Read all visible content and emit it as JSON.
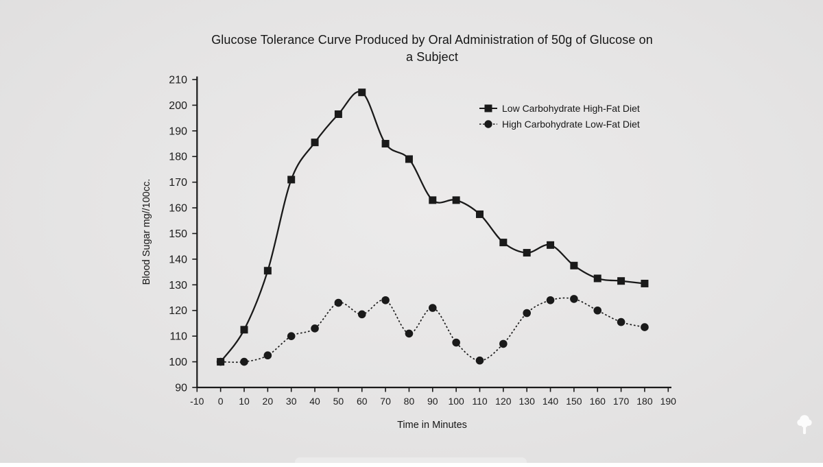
{
  "colors": {
    "background": "#e5e4e4",
    "line": "#1a1a1a",
    "text": "#1c1c1c",
    "watermark": "#ffffff"
  },
  "watermark_icon": "tree-logo",
  "chart_data": {
    "type": "line",
    "title": "Glucose Tolerance Curve Produced by Oral Administration of 50g of Glucose on a Subject",
    "title_lines": [
      "Glucose Tolerance Curve Produced by Oral Administration of 50g of Glucose on",
      "a Subject"
    ],
    "xlabel": "Time in Minutes",
    "ylabel": "Blood Sugar mg//100cc.",
    "xlim": [
      -10,
      190
    ],
    "ylim": [
      90,
      210
    ],
    "x_ticks": [
      -10,
      0,
      10,
      20,
      30,
      40,
      50,
      60,
      70,
      80,
      90,
      100,
      110,
      120,
      130,
      140,
      150,
      160,
      170,
      180,
      190
    ],
    "y_ticks": [
      90,
      100,
      110,
      120,
      130,
      140,
      150,
      160,
      170,
      180,
      190,
      200,
      210
    ],
    "grid": false,
    "legend_position": "inside-upper-right",
    "x": [
      0,
      10,
      20,
      30,
      40,
      50,
      60,
      70,
      80,
      90,
      100,
      110,
      120,
      130,
      140,
      150,
      160,
      170,
      180
    ],
    "series": [
      {
        "name": "Low Carbohydrate High-Fat Diet",
        "marker": "square",
        "line_style": "solid",
        "values": [
          100,
          112.5,
          135.5,
          171,
          185.5,
          196.5,
          205,
          185,
          179,
          163,
          163,
          157.5,
          146.5,
          142.5,
          145.5,
          137.5,
          132.5,
          131.5,
          130.5
        ]
      },
      {
        "name": "High Carbohydrate Low-Fat Diet",
        "marker": "circle",
        "line_style": "dashed",
        "values": [
          100,
          100,
          102.5,
          110,
          113,
          123,
          118.5,
          124,
          111,
          121,
          107.5,
          100.5,
          107,
          119,
          124,
          124.5,
          120,
          115.5,
          113.5
        ]
      }
    ]
  }
}
